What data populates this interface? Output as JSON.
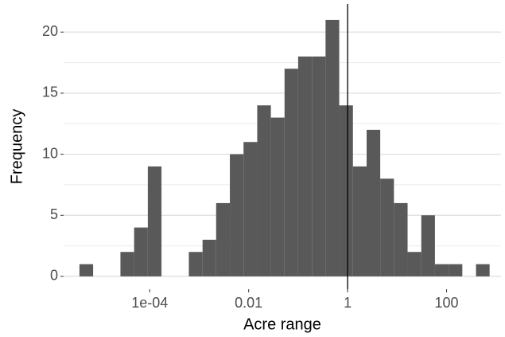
{
  "chart_data": {
    "type": "histogram",
    "x_label": "Acre range",
    "y_label": "Frequency",
    "x_log": true,
    "bins": [
      3.8e-06,
      7.18e-06,
      1.36e-05,
      2.56e-05,
      4.84e-05,
      9.16e-05,
      0.000173,
      0.000327,
      0.000618,
      0.00117,
      0.0022,
      0.00417,
      0.00787,
      0.0149,
      0.0281,
      0.0531,
      0.1,
      0.19,
      0.358,
      0.676,
      1.28,
      2.42,
      4.56,
      8.63,
      16.3,
      30.8,
      58.2,
      110,
      208,
      393,
      741
    ],
    "counts": [
      1,
      0,
      0,
      2,
      4,
      9,
      0,
      0,
      2,
      3,
      6,
      10,
      11,
      14,
      13,
      17,
      18,
      18,
      21,
      14,
      9,
      12,
      8,
      6,
      2,
      5,
      1,
      1,
      0,
      1
    ],
    "color": "#595959",
    "vline": 1,
    "xlim": [
      1.82e-06,
      1260
    ],
    "ylim": [
      -1.05,
      22.3
    ],
    "xticks": [
      {
        "value": 0.0001,
        "label": "1e-04"
      },
      0.01,
      1,
      100
    ],
    "yticks": [
      0,
      5,
      10,
      15,
      20
    ],
    "y_minor_ticks": [
      2.5,
      7.5,
      12.5,
      17.5
    ],
    "grid": true
  }
}
